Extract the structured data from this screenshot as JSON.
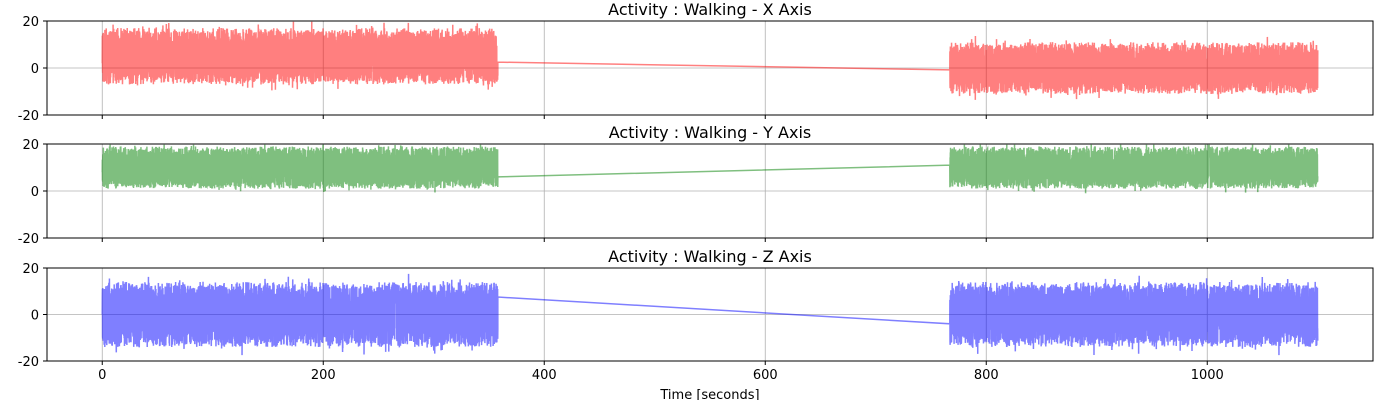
{
  "chart_data": [
    {
      "type": "line",
      "title": "Activity : Walking - X Axis",
      "xlabel": "",
      "ylabel": "",
      "xlim": [
        -50,
        1150
      ],
      "ylim": [
        -20,
        20
      ],
      "yticks": [
        -20,
        0,
        20
      ],
      "xticks": [
        0,
        200,
        400,
        600,
        800,
        1000
      ],
      "grid": true,
      "color": "#ff0000",
      "opacity": 0.5,
      "segments": [
        {
          "x_start": 0,
          "x_end": 358,
          "center": 5,
          "amplitude": 12,
          "start_value": 2
        },
        {
          "x_start": 767,
          "x_end": 1100,
          "center": 0,
          "amplitude": 11,
          "start_value": -1
        }
      ],
      "bridge": {
        "x": [
          358,
          767
        ],
        "y": [
          2.5,
          -0.8
        ]
      }
    },
    {
      "type": "line",
      "title": "Activity : Walking - Y Axis",
      "xlabel": "",
      "ylabel": "",
      "xlim": [
        -50,
        1150
      ],
      "ylim": [
        -20,
        20
      ],
      "yticks": [
        -20,
        0,
        20
      ],
      "xticks": [
        0,
        200,
        400,
        600,
        800,
        1000
      ],
      "grid": true,
      "color": "#008000",
      "opacity": 0.5,
      "segments": [
        {
          "x_start": 0,
          "x_end": 358,
          "center": 10,
          "amplitude": 9,
          "start_value": 8
        },
        {
          "x_start": 767,
          "x_end": 1100,
          "center": 10,
          "amplitude": 9,
          "start_value": 11
        }
      ],
      "bridge": {
        "x": [
          358,
          767
        ],
        "y": [
          6,
          11
        ]
      }
    },
    {
      "type": "line",
      "title": "Activity : Walking - Z Axis",
      "xlabel": "Time [seconds]",
      "ylabel": "",
      "xlim": [
        -50,
        1150
      ],
      "ylim": [
        -20,
        20
      ],
      "yticks": [
        -20,
        0,
        20
      ],
      "xticks": [
        0,
        200,
        400,
        600,
        800,
        1000
      ],
      "grid": true,
      "color": "#0000ff",
      "opacity": 0.5,
      "segments": [
        {
          "x_start": 0,
          "x_end": 358,
          "center": 0,
          "amplitude": 14,
          "start_value": 0
        },
        {
          "x_start": 767,
          "x_end": 1100,
          "center": 0,
          "amplitude": 14,
          "start_value": -4
        }
      ],
      "bridge": {
        "x": [
          358,
          767
        ],
        "y": [
          7.5,
          -4
        ]
      }
    }
  ]
}
